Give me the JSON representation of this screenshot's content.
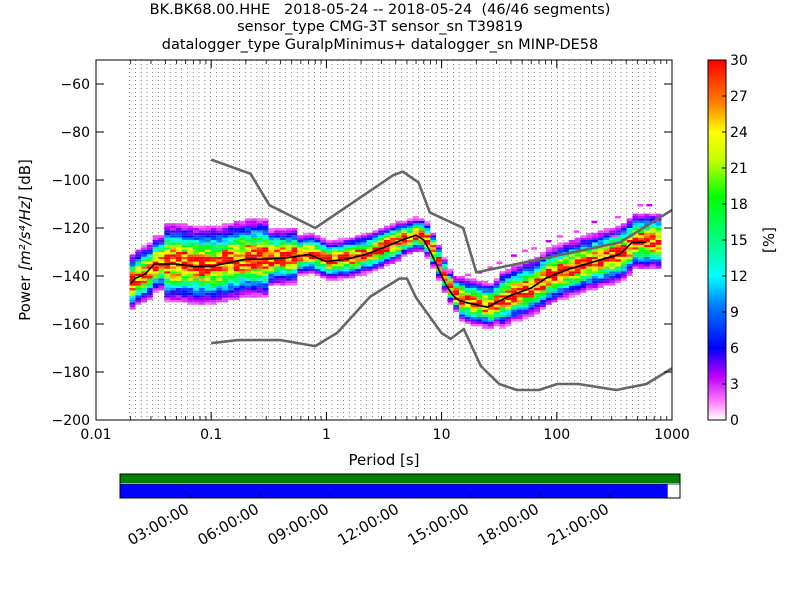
{
  "chart_data": {
    "type": "heatmap",
    "title_lines": [
      "BK.BK68.00.HHE   2018-05-24 -- 2018-05-24  (46/46 segments)",
      "sensor_type CMG-3T sensor_sn T39819",
      "datalogger_type GuralpMinimus+ datalogger_sn MINP-DE58"
    ],
    "xlabel": "Period [s]",
    "ylabel_prefix": "Power ",
    "ylabel_math": "[m²/s⁴/Hz]",
    "ylabel_suffix": " [dB]",
    "x_scale": "log",
    "xlim": [
      0.01,
      1000
    ],
    "ylim": [
      -200,
      -50
    ],
    "x_ticks": [
      0.01,
      0.1,
      1,
      10,
      100,
      1000
    ],
    "x_tick_labels": [
      "0.01",
      "0.1",
      "1",
      "10",
      "100",
      "1000"
    ],
    "y_ticks": [
      -200,
      -180,
      -160,
      -140,
      -120,
      -100,
      -80,
      -60
    ],
    "y_tick_labels": [
      "−200",
      "−180",
      "−160",
      "−140",
      "−120",
      "−100",
      "−80",
      "−60"
    ],
    "grid": "dotted vertical lines at each period bin",
    "colorbar": {
      "label": "[%]",
      "range": [
        0,
        30
      ],
      "ticks": [
        0,
        3,
        6,
        9,
        12,
        15,
        18,
        21,
        24,
        27,
        30
      ],
      "tick_labels": [
        "0",
        "3",
        "6",
        "9",
        "12",
        "15",
        "18",
        "21",
        "24",
        "27",
        "30"
      ]
    },
    "noise_models": {
      "color": "#666666",
      "high_noise_model": {
        "period": [
          0.1,
          0.22,
          0.32,
          0.8,
          3.8,
          4.6,
          6.3,
          7.9,
          15.4,
          20,
          354.8,
          1000
        ],
        "db": [
          -91.5,
          -97.4,
          -110.5,
          -120,
          -98,
          -96.5,
          -101,
          -113.5,
          -120,
          -138.5,
          -126,
          -112.5
        ]
      },
      "low_noise_model": {
        "period": [
          0.1,
          0.17,
          0.4,
          0.8,
          1.24,
          2.4,
          4.3,
          5,
          6,
          10,
          12,
          15.6,
          21.9,
          31.6,
          45,
          70,
          101,
          154,
          328,
          600,
          1000
        ],
        "db": [
          -168,
          -166.7,
          -166.7,
          -169.2,
          -163.7,
          -148.6,
          -141.1,
          -141.1,
          -149,
          -163.8,
          -166.2,
          -162.1,
          -177.5,
          -185,
          -187.5,
          -187.5,
          -185,
          -185,
          -187.5,
          -185,
          -178.5
        ]
      }
    },
    "mode_curve": {
      "color": "#000000",
      "period": [
        0.02,
        0.022,
        0.027,
        0.032,
        0.04,
        0.05,
        0.07,
        0.1,
        0.14,
        0.2,
        0.3,
        0.45,
        0.7,
        1,
        1.5,
        2.2,
        3.2,
        4.5,
        6,
        7,
        8,
        9,
        10,
        11,
        12.5,
        14,
        16,
        20,
        25,
        30,
        40,
        60,
        80,
        100,
        130,
        180,
        250,
        350,
        450,
        600
      ],
      "db": [
        -143,
        -141,
        -139,
        -135,
        -135,
        -135,
        -136,
        -136,
        -134.5,
        -133,
        -133,
        -132.5,
        -131,
        -134,
        -133,
        -131,
        -128,
        -125,
        -123,
        -125,
        -130,
        -135,
        -140,
        -144,
        -148,
        -150,
        -151,
        -152,
        -153,
        -151,
        -148,
        -145,
        -141,
        -139,
        -137,
        -135,
        -133,
        -131,
        -126,
        -126
      ]
    },
    "segment_grid": {
      "bin_periods": [
        0.0196,
        0.022,
        0.0247,
        0.0277,
        0.0311,
        0.0349,
        0.0392,
        0.044,
        0.0494,
        0.0554,
        0.0622,
        0.0698,
        0.0784,
        0.088,
        0.0988,
        0.1109,
        0.1245,
        0.1397,
        0.1568,
        0.176,
        0.1976,
        0.2218,
        0.249,
        0.2795,
        0.3137,
        0.3521,
        0.3952,
        0.4436,
        0.498,
        0.559,
        0.6274,
        0.7043,
        0.7905,
        0.8873,
        0.996,
        1.118,
        1.2549,
        1.4086,
        1.5811,
        1.7747,
        1.9921,
        2.2361,
        2.51,
        2.8174,
        3.1623,
        3.5496,
        3.9843,
        4.4721,
        5.0198,
        5.6346,
        6.3246,
        7.0991,
        7.9686,
        8.9443,
        10.0397,
        11.2691,
        12.6491,
        14.1982,
        15.9372,
        17.8885,
        20.0793,
        22.5382,
        25.2982,
        28.3963,
        31.8744,
        35.7771,
        40.1587,
        45.0764,
        50.5964,
        56.7927,
        63.7488,
        71.5542,
        80.3173,
        90.1527,
        101.193,
        113.585,
        127.498,
        143.108,
        160.635,
        180.306,
        202.386,
        227.171,
        254.996,
        286.215,
        321.27,
        360.612,
        404.772,
        454.342,
        509.992,
        572.443,
        642.54,
        721.226
      ]
    },
    "time_coverage": {
      "tick_labels": [
        "03:00:00",
        "06:00:00",
        "09:00:00",
        "12:00:00",
        "15:00:00",
        "18:00:00",
        "21:00:00"
      ],
      "tick_hours": [
        3,
        6,
        9,
        12,
        15,
        18,
        21
      ],
      "range_hours": [
        0,
        24
      ],
      "data_available_color": "#008000",
      "segments_color": "#0000ff",
      "segments_covered_fraction": 0.978
    }
  }
}
